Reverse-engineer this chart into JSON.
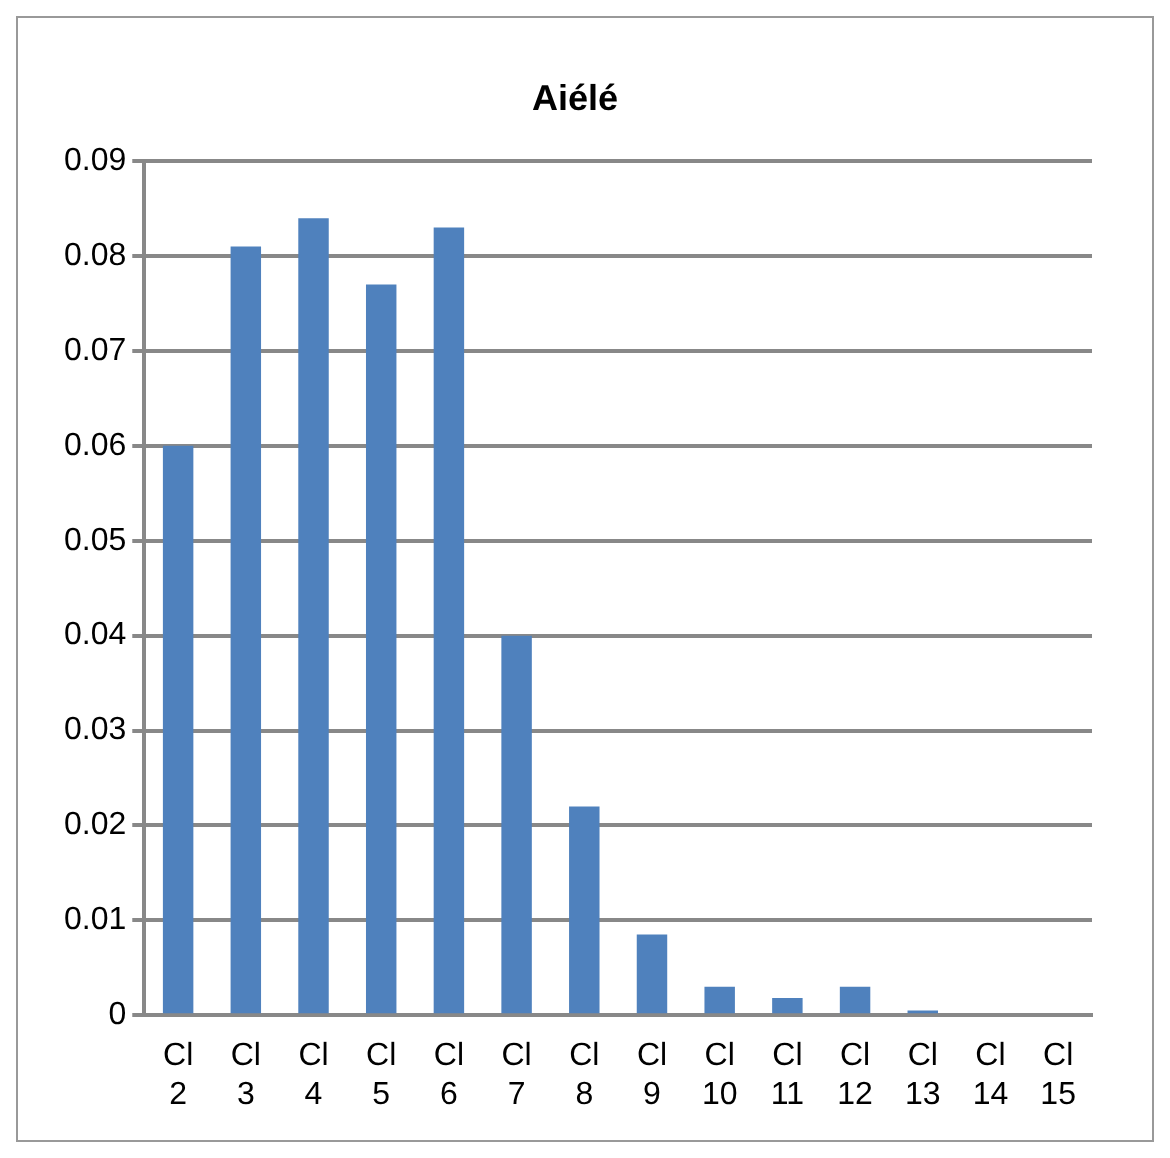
{
  "chart_data": {
    "type": "bar",
    "title": "Aiélé",
    "categories": [
      "Cl 2",
      "Cl 3",
      "Cl 4",
      "Cl 5",
      "Cl 6",
      "Cl 7",
      "Cl 8",
      "Cl 9",
      "Cl 10",
      "Cl 11",
      "Cl 12",
      "Cl 13",
      "Cl 14",
      "Cl 15"
    ],
    "values": [
      0.06,
      0.081,
      0.084,
      0.077,
      0.083,
      0.04,
      0.022,
      0.0085,
      0.003,
      0.0018,
      0.003,
      0.0005,
      0.0002,
      0.0002
    ],
    "color": "#4f81bd",
    "ylim": [
      0,
      0.09
    ],
    "yticks": [
      0,
      0.01,
      0.02,
      0.03,
      0.04,
      0.05,
      0.06,
      0.07,
      0.08,
      0.09
    ],
    "grid": "y",
    "legend": false
  }
}
